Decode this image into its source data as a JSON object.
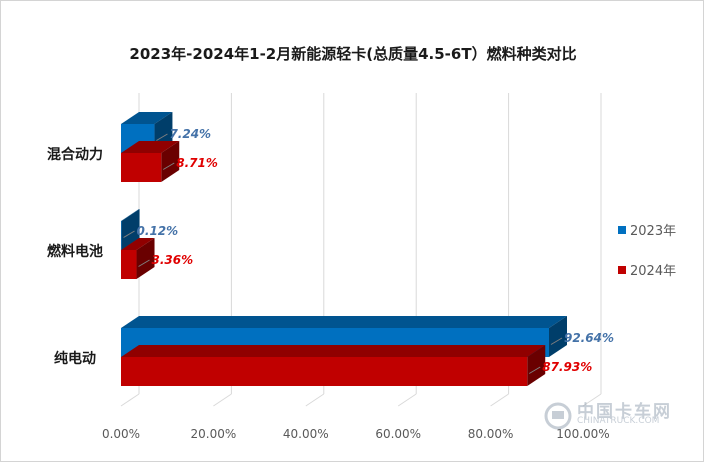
{
  "chart_data": {
    "type": "bar",
    "orientation": "horizontal",
    "style": "3d",
    "title": "2023年-2024年1-2月新能源轻卡(总质量4.5-6T）燃料种类对比",
    "categories": [
      "混合动力",
      "燃料电池",
      "纯电动"
    ],
    "series": [
      {
        "name": "2023年",
        "values": [
          7.24,
          0.12,
          92.64
        ],
        "labels": [
          "7.24%",
          "0.12%",
          "92.64%"
        ],
        "color": "#0070c0"
      },
      {
        "name": "2024年",
        "values": [
          8.71,
          3.36,
          87.93
        ],
        "labels": [
          "8.71%",
          "3.36%",
          "87.93%"
        ],
        "color": "#c00000"
      }
    ],
    "xlim": [
      0,
      100
    ],
    "xticks": [
      "0.00%",
      "20.00%",
      "40.00%",
      "60.00%",
      "80.00%",
      "100.00%"
    ],
    "grid": true,
    "legend_position": "right"
  },
  "watermark": {
    "line1": "中国卡车网",
    "line2": "CHINATRUCK.COM"
  }
}
